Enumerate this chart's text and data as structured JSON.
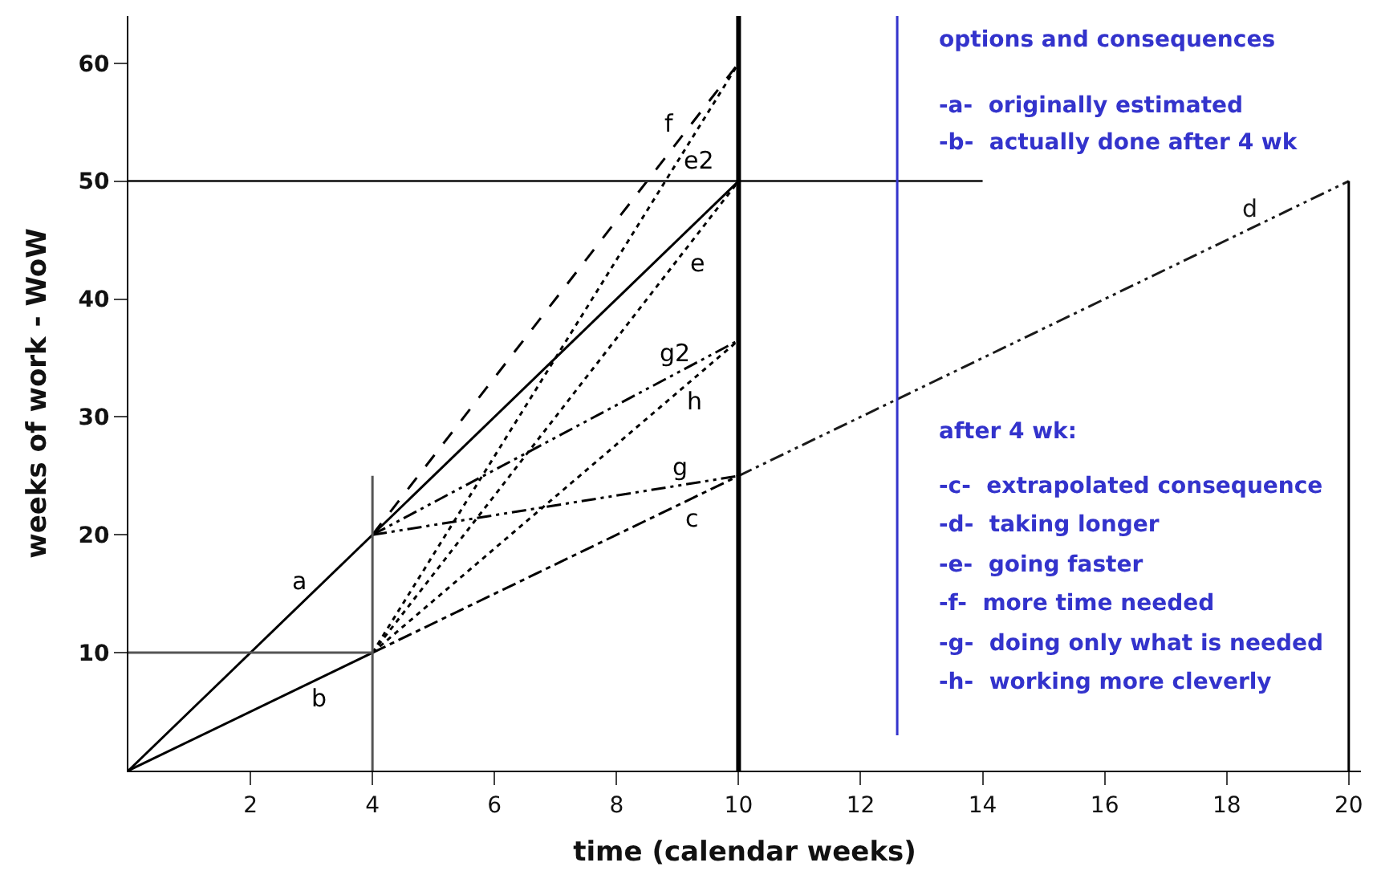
{
  "chart_data": {
    "type": "line",
    "xlabel": "time (calendar weeks)",
    "ylabel": "weeks of work - WoW",
    "xlim": [
      0,
      20.2
    ],
    "ylim": [
      0,
      64
    ],
    "xticks": [
      2,
      4,
      6,
      8,
      10,
      12,
      14,
      16,
      18,
      20
    ],
    "yticks": [
      10,
      20,
      30,
      40,
      50,
      60
    ],
    "grid": false,
    "legend": false,
    "marker": "none",
    "series": [
      {
        "name": "a",
        "color": "#000000",
        "x": [
          0,
          10
        ],
        "values": [
          0,
          50
        ],
        "line_style": "solid"
      },
      {
        "name": "b",
        "color": "#000000",
        "x": [
          0,
          4
        ],
        "values": [
          0,
          10
        ],
        "line_style": "solid"
      },
      {
        "name": "c",
        "color": "#000000",
        "x": [
          4,
          10
        ],
        "values": [
          10,
          25
        ],
        "line_style": "dashdot"
      },
      {
        "name": "d",
        "color": "#1a1a1a",
        "x": [
          10,
          20
        ],
        "values": [
          25,
          50
        ],
        "line_style": "dashdotdot"
      },
      {
        "name": "e",
        "color": "#000000",
        "x": [
          4,
          10
        ],
        "values": [
          10,
          50
        ],
        "line_style": "dotted"
      },
      {
        "name": "e2",
        "color": "#000000",
        "x": [
          4,
          10
        ],
        "values": [
          10,
          60
        ],
        "line_style": "dotted"
      },
      {
        "name": "f",
        "color": "#000000",
        "x": [
          4,
          10
        ],
        "values": [
          20,
          60
        ],
        "line_style": "dashed"
      },
      {
        "name": "g",
        "color": "#000000",
        "x": [
          4,
          10
        ],
        "values": [
          20,
          25
        ],
        "line_style": "dashdotdot"
      },
      {
        "name": "g2",
        "color": "#000000",
        "x": [
          4,
          10
        ],
        "values": [
          20,
          36.5
        ],
        "line_style": "dashdotdot"
      },
      {
        "name": "h",
        "color": "#000000",
        "x": [
          4,
          10
        ],
        "values": [
          10,
          36.5
        ],
        "line_style": "dotted"
      },
      {
        "color": "#555555",
        "x": [
          4,
          4
        ],
        "values": [
          0,
          25
        ],
        "line_style": "solid"
      },
      {
        "color": "#555555",
        "x": [
          0,
          4
        ],
        "values": [
          10,
          10
        ],
        "line_style": "solid"
      },
      {
        "color": "#333333",
        "x": [
          0,
          14
        ],
        "values": [
          50,
          50
        ],
        "line_style": "solid"
      },
      {
        "color": "#000000",
        "x": [
          20,
          20
        ],
        "values": [
          50,
          0
        ],
        "line_style": "solid"
      },
      {
        "color": "#3333cc",
        "x": [
          12.6,
          12.6
        ],
        "values": [
          3,
          64
        ],
        "line_style": "solid"
      }
    ],
    "ref_lines": [
      {
        "axis": "x",
        "value": 10,
        "color": "#000000"
      }
    ],
    "annotations": [
      "options and consequences",
      "-a-  originally estimated",
      "-b-  actually done after 4 wk",
      "after 4 wk:",
      "-c-  extrapolated consequence",
      "-d-  taking longer",
      "-e-  going faster",
      "-f-  more time needed",
      "-g-  doing only what is needed",
      "-h-  working more cleverly"
    ]
  }
}
